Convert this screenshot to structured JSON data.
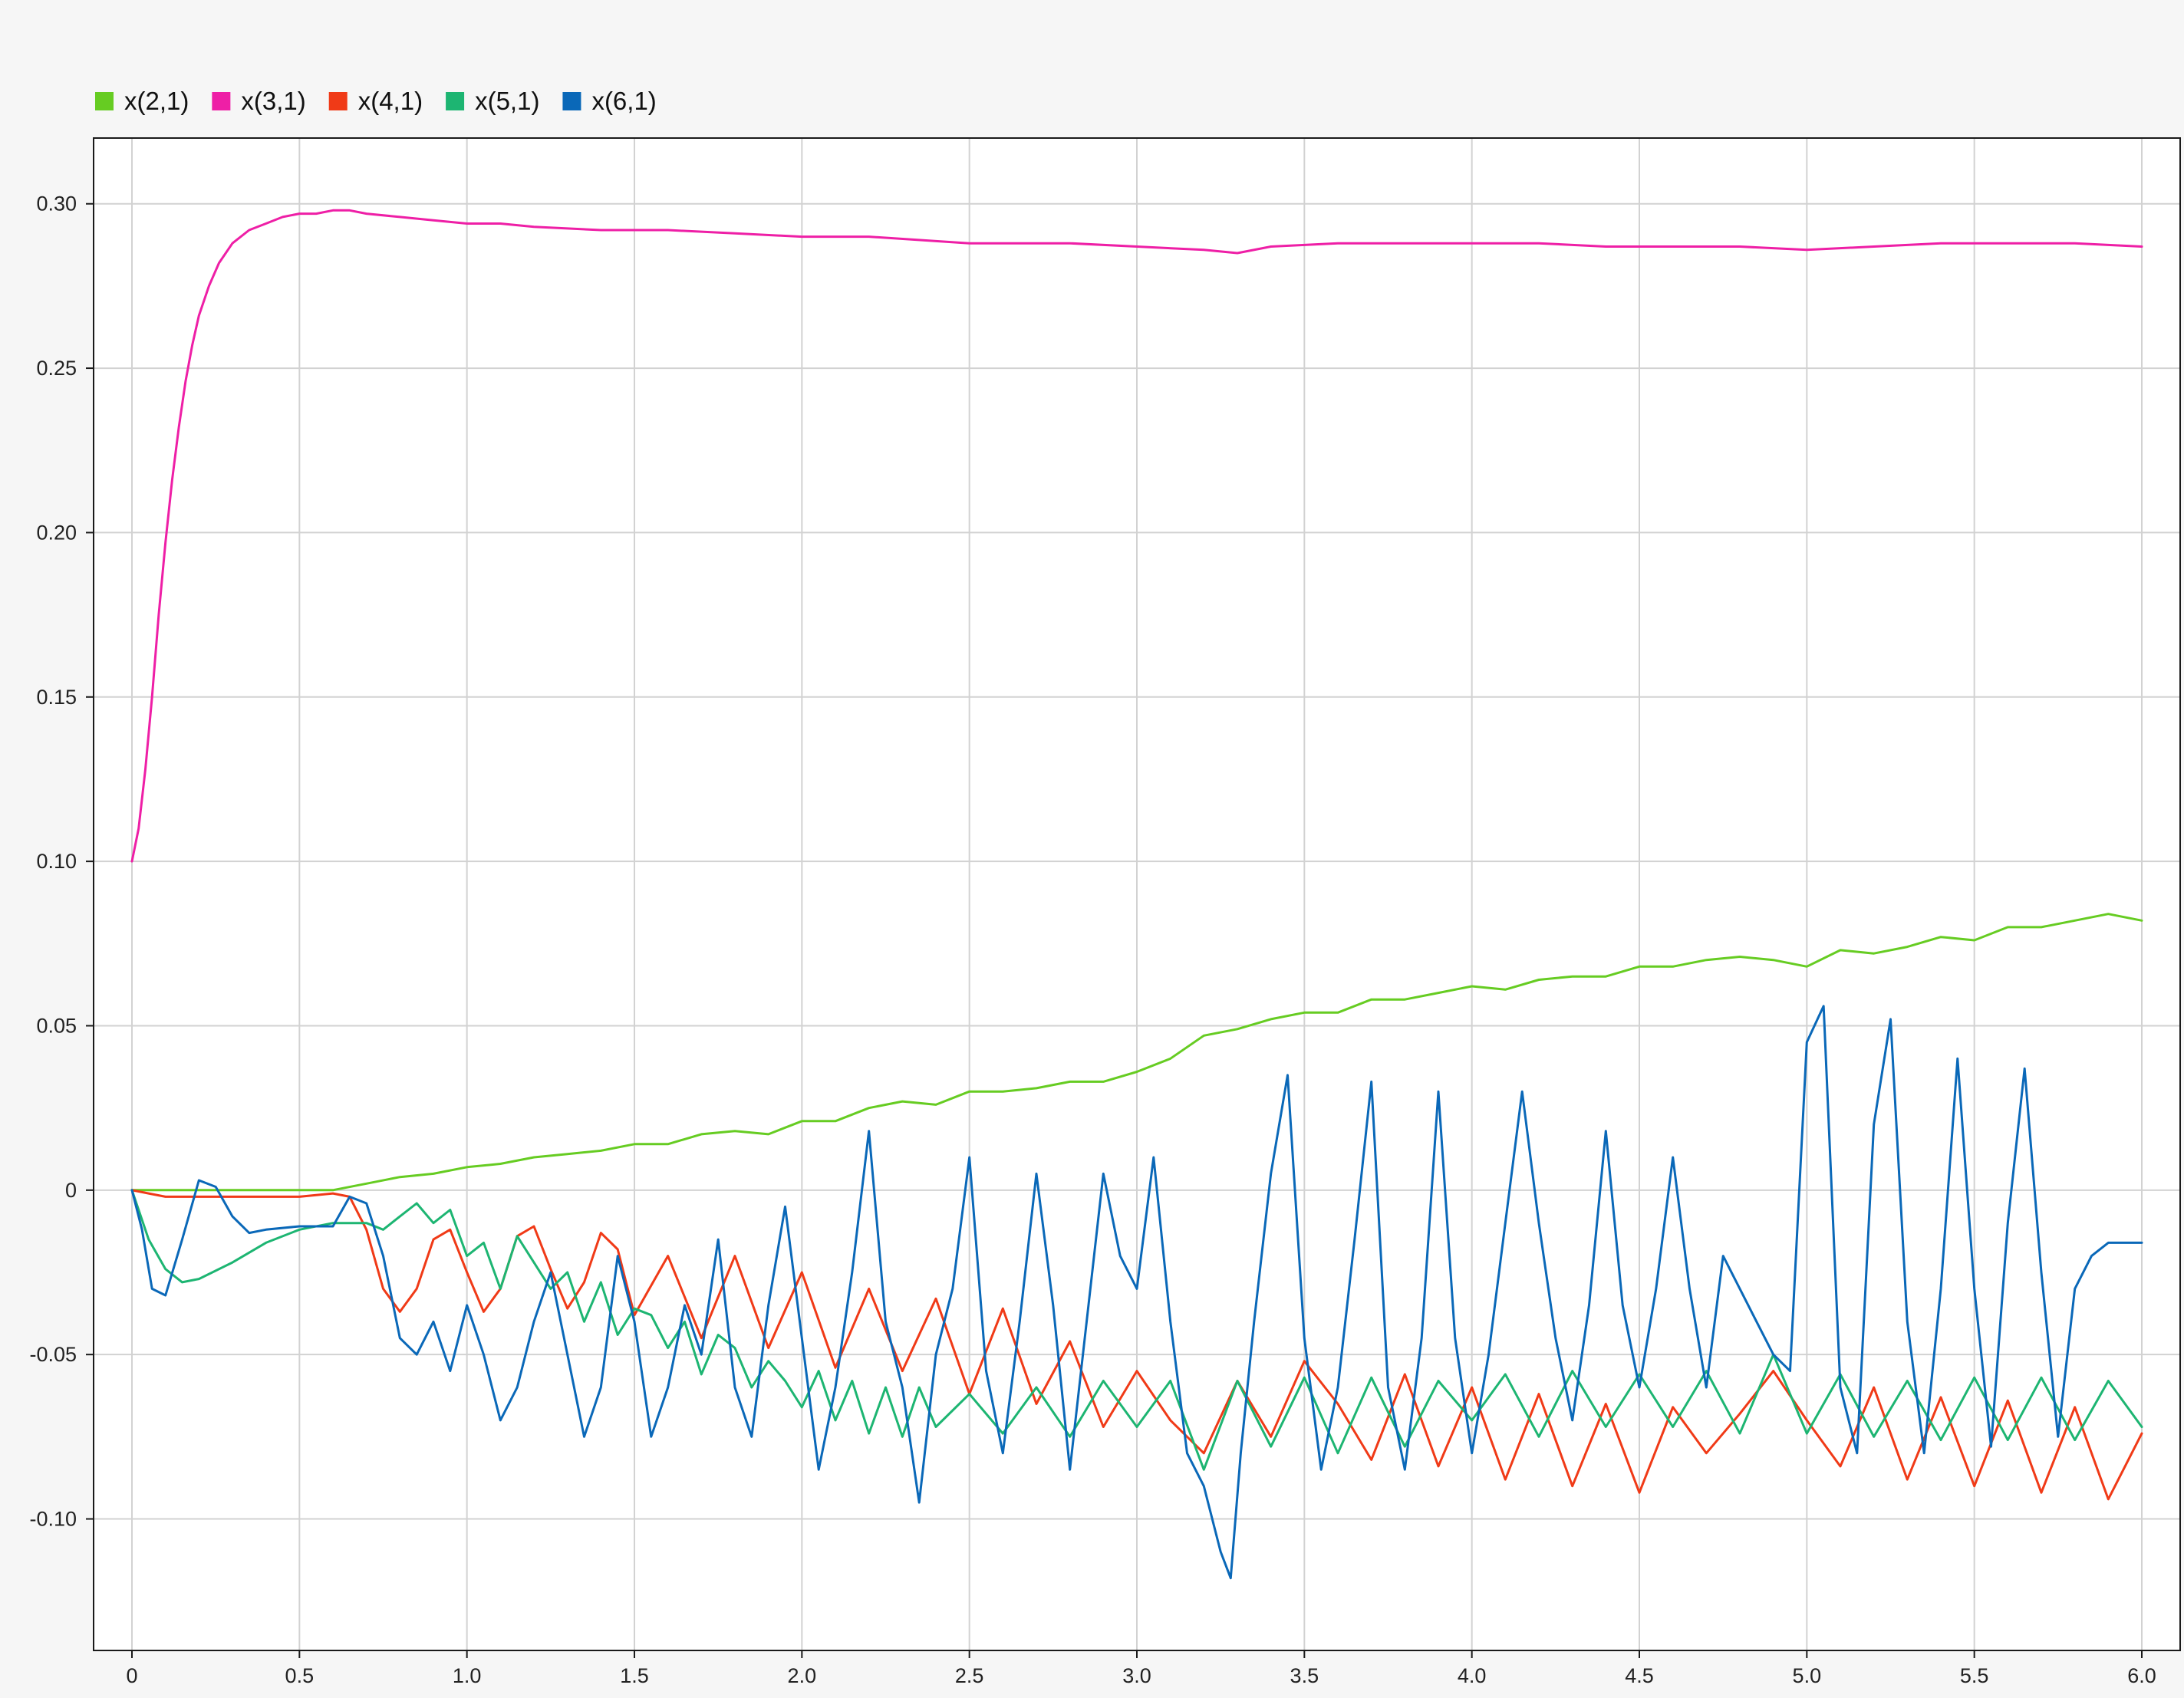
{
  "chart_data": {
    "type": "line",
    "xlim": [
      0,
      6
    ],
    "ylim": [
      -0.14,
      0.32
    ],
    "x_ticks": [
      0,
      0.5,
      1.0,
      1.5,
      2.0,
      2.5,
      3.0,
      3.5,
      4.0,
      4.5,
      5.0,
      5.5,
      6.0
    ],
    "x_tick_labels": [
      "0",
      "0.5",
      "1.0",
      "1.5",
      "2.0",
      "2.5",
      "3.0",
      "3.5",
      "4.0",
      "4.5",
      "5.0",
      "5.5",
      "6.0"
    ],
    "y_ticks": [
      -0.1,
      -0.05,
      0,
      0.05,
      0.1,
      0.15,
      0.2,
      0.25,
      0.3
    ],
    "y_tick_labels": [
      "-0.10",
      "-0.05",
      "0",
      "0.05",
      "0.10",
      "0.15",
      "0.20",
      "0.25",
      "0.30"
    ],
    "grid": true,
    "legend_position": "top-left",
    "series": [
      {
        "name": "x(2,1)",
        "color": "#66cc22",
        "x": [
          0,
          0.3,
          0.6,
          0.7,
          0.8,
          0.9,
          1.0,
          1.1,
          1.2,
          1.3,
          1.4,
          1.5,
          1.6,
          1.7,
          1.8,
          1.9,
          2.0,
          2.1,
          2.2,
          2.3,
          2.4,
          2.5,
          2.6,
          2.7,
          2.8,
          2.9,
          3.0,
          3.1,
          3.2,
          3.3,
          3.4,
          3.5,
          3.6,
          3.7,
          3.8,
          3.9,
          4.0,
          4.1,
          4.2,
          4.3,
          4.4,
          4.5,
          4.6,
          4.7,
          4.8,
          4.9,
          5.0,
          5.1,
          5.2,
          5.3,
          5.4,
          5.5,
          5.6,
          5.7,
          5.8,
          5.9,
          6.0
        ],
        "y": [
          0,
          0,
          0,
          0.002,
          0.004,
          0.005,
          0.007,
          0.008,
          0.01,
          0.011,
          0.012,
          0.014,
          0.014,
          0.017,
          0.018,
          0.017,
          0.021,
          0.021,
          0.025,
          0.027,
          0.026,
          0.03,
          0.03,
          0.031,
          0.033,
          0.033,
          0.036,
          0.04,
          0.047,
          0.049,
          0.052,
          0.054,
          0.054,
          0.058,
          0.058,
          0.06,
          0.062,
          0.061,
          0.064,
          0.065,
          0.065,
          0.068,
          0.068,
          0.07,
          0.071,
          0.07,
          0.068,
          0.073,
          0.072,
          0.074,
          0.077,
          0.076,
          0.08,
          0.08,
          0.082,
          0.084,
          0.082
        ]
      },
      {
        "name": "x(3,1)",
        "color": "#ee1fa6",
        "x": [
          0,
          0.02,
          0.04,
          0.06,
          0.08,
          0.1,
          0.12,
          0.14,
          0.16,
          0.18,
          0.2,
          0.23,
          0.26,
          0.3,
          0.35,
          0.4,
          0.45,
          0.5,
          0.55,
          0.6,
          0.65,
          0.7,
          0.8,
          0.9,
          1.0,
          1.1,
          1.2,
          1.4,
          1.6,
          1.8,
          2.0,
          2.2,
          2.5,
          2.8,
          3.0,
          3.2,
          3.3,
          3.4,
          3.6,
          3.8,
          4.0,
          4.2,
          4.4,
          4.6,
          4.8,
          5.0,
          5.2,
          5.4,
          5.6,
          5.8,
          6.0
        ],
        "y": [
          0.1,
          0.11,
          0.128,
          0.15,
          0.175,
          0.197,
          0.216,
          0.232,
          0.246,
          0.257,
          0.266,
          0.275,
          0.282,
          0.288,
          0.292,
          0.294,
          0.296,
          0.297,
          0.297,
          0.298,
          0.298,
          0.297,
          0.296,
          0.295,
          0.294,
          0.294,
          0.293,
          0.292,
          0.292,
          0.291,
          0.29,
          0.29,
          0.288,
          0.288,
          0.287,
          0.286,
          0.285,
          0.287,
          0.288,
          0.288,
          0.288,
          0.288,
          0.287,
          0.287,
          0.287,
          0.286,
          0.287,
          0.288,
          0.288,
          0.288,
          0.287
        ]
      },
      {
        "name": "x(4,1)",
        "color": "#f03a17",
        "x": [
          0,
          0.05,
          0.1,
          0.2,
          0.3,
          0.4,
          0.5,
          0.6,
          0.65,
          0.7,
          0.75,
          0.8,
          0.85,
          0.9,
          0.95,
          1.0,
          1.05,
          1.1,
          1.15,
          1.2,
          1.25,
          1.3,
          1.35,
          1.4,
          1.45,
          1.5,
          1.6,
          1.7,
          1.8,
          1.9,
          2.0,
          2.1,
          2.2,
          2.3,
          2.4,
          2.5,
          2.6,
          2.7,
          2.8,
          2.9,
          3.0,
          3.1,
          3.2,
          3.3,
          3.4,
          3.5,
          3.6,
          3.7,
          3.8,
          3.9,
          4.0,
          4.1,
          4.2,
          4.3,
          4.4,
          4.5,
          4.6,
          4.7,
          4.8,
          4.9,
          5.0,
          5.1,
          5.2,
          5.3,
          5.4,
          5.5,
          5.6,
          5.7,
          5.8,
          5.9,
          6.0
        ],
        "y": [
          0,
          -0.001,
          -0.002,
          -0.002,
          -0.002,
          -0.002,
          -0.002,
          -0.001,
          -0.002,
          -0.012,
          -0.03,
          -0.037,
          -0.03,
          -0.015,
          -0.012,
          -0.025,
          -0.037,
          -0.03,
          -0.014,
          -0.011,
          -0.024,
          -0.036,
          -0.028,
          -0.013,
          -0.018,
          -0.038,
          -0.02,
          -0.045,
          -0.02,
          -0.048,
          -0.025,
          -0.054,
          -0.03,
          -0.055,
          -0.033,
          -0.062,
          -0.036,
          -0.065,
          -0.046,
          -0.072,
          -0.055,
          -0.07,
          -0.08,
          -0.058,
          -0.075,
          -0.052,
          -0.065,
          -0.082,
          -0.056,
          -0.084,
          -0.06,
          -0.088,
          -0.062,
          -0.09,
          -0.065,
          -0.092,
          -0.066,
          -0.08,
          -0.068,
          -0.055,
          -0.07,
          -0.084,
          -0.06,
          -0.088,
          -0.063,
          -0.09,
          -0.064,
          -0.092,
          -0.066,
          -0.094,
          -0.074
        ]
      },
      {
        "name": "x(5,1)",
        "color": "#1db572",
        "x": [
          0,
          0.05,
          0.1,
          0.15,
          0.2,
          0.3,
          0.4,
          0.5,
          0.6,
          0.7,
          0.75,
          0.8,
          0.85,
          0.9,
          0.95,
          1.0,
          1.05,
          1.1,
          1.15,
          1.2,
          1.25,
          1.3,
          1.35,
          1.4,
          1.45,
          1.5,
          1.55,
          1.6,
          1.65,
          1.7,
          1.75,
          1.8,
          1.85,
          1.9,
          1.95,
          2.0,
          2.05,
          2.1,
          2.15,
          2.2,
          2.25,
          2.3,
          2.35,
          2.4,
          2.5,
          2.6,
          2.7,
          2.8,
          2.9,
          3.0,
          3.1,
          3.2,
          3.3,
          3.4,
          3.5,
          3.6,
          3.7,
          3.8,
          3.9,
          4.0,
          4.1,
          4.2,
          4.3,
          4.4,
          4.5,
          4.6,
          4.7,
          4.8,
          4.9,
          5.0,
          5.1,
          5.2,
          5.3,
          5.4,
          5.5,
          5.6,
          5.7,
          5.8,
          5.9,
          6.0
        ],
        "y": [
          0,
          -0.015,
          -0.024,
          -0.028,
          -0.027,
          -0.022,
          -0.016,
          -0.012,
          -0.01,
          -0.01,
          -0.012,
          -0.008,
          -0.004,
          -0.01,
          -0.006,
          -0.02,
          -0.016,
          -0.03,
          -0.014,
          -0.022,
          -0.03,
          -0.025,
          -0.04,
          -0.028,
          -0.044,
          -0.036,
          -0.038,
          -0.048,
          -0.04,
          -0.056,
          -0.044,
          -0.048,
          -0.06,
          -0.052,
          -0.058,
          -0.066,
          -0.055,
          -0.07,
          -0.058,
          -0.074,
          -0.06,
          -0.075,
          -0.06,
          -0.072,
          -0.062,
          -0.074,
          -0.06,
          -0.075,
          -0.058,
          -0.072,
          -0.058,
          -0.085,
          -0.058,
          -0.078,
          -0.057,
          -0.08,
          -0.057,
          -0.078,
          -0.058,
          -0.07,
          -0.056,
          -0.075,
          -0.055,
          -0.072,
          -0.056,
          -0.072,
          -0.055,
          -0.074,
          -0.05,
          -0.074,
          -0.056,
          -0.075,
          -0.058,
          -0.076,
          -0.057,
          -0.076,
          -0.057,
          -0.076,
          -0.058,
          -0.072
        ]
      },
      {
        "name": "x(6,1)",
        "color": "#0a68b8",
        "x": [
          0,
          0.03,
          0.06,
          0.1,
          0.15,
          0.2,
          0.25,
          0.3,
          0.35,
          0.4,
          0.5,
          0.6,
          0.65,
          0.7,
          0.75,
          0.8,
          0.85,
          0.9,
          0.95,
          1.0,
          1.05,
          1.1,
          1.15,
          1.2,
          1.25,
          1.3,
          1.35,
          1.4,
          1.45,
          1.5,
          1.55,
          1.6,
          1.65,
          1.7,
          1.75,
          1.8,
          1.85,
          1.9,
          1.95,
          2.0,
          2.05,
          2.1,
          2.15,
          2.2,
          2.25,
          2.3,
          2.35,
          2.4,
          2.45,
          2.5,
          2.55,
          2.6,
          2.65,
          2.7,
          2.75,
          2.8,
          2.85,
          2.9,
          2.95,
          3.0,
          3.05,
          3.1,
          3.15,
          3.2,
          3.25,
          3.28,
          3.31,
          3.35,
          3.4,
          3.45,
          3.5,
          3.55,
          3.6,
          3.65,
          3.7,
          3.75,
          3.8,
          3.85,
          3.9,
          3.95,
          4.0,
          4.05,
          4.1,
          4.15,
          4.2,
          4.25,
          4.3,
          4.35,
          4.4,
          4.45,
          4.5,
          4.55,
          4.6,
          4.65,
          4.7,
          4.75,
          4.8,
          4.85,
          4.9,
          4.95,
          5.0,
          5.05,
          5.1,
          5.15,
          5.2,
          5.25,
          5.3,
          5.35,
          5.4,
          5.45,
          5.5,
          5.55,
          5.6,
          5.65,
          5.7,
          5.75,
          5.8,
          5.85,
          5.9,
          5.95,
          6.0
        ],
        "y": [
          0,
          -0.012,
          -0.03,
          -0.032,
          -0.015,
          0.003,
          0.001,
          -0.008,
          -0.013,
          -0.012,
          -0.011,
          -0.011,
          -0.002,
          -0.004,
          -0.02,
          -0.045,
          -0.05,
          -0.04,
          -0.055,
          -0.035,
          -0.05,
          -0.07,
          -0.06,
          -0.04,
          -0.025,
          -0.05,
          -0.075,
          -0.06,
          -0.02,
          -0.04,
          -0.075,
          -0.06,
          -0.035,
          -0.05,
          -0.015,
          -0.06,
          -0.075,
          -0.035,
          -0.005,
          -0.045,
          -0.085,
          -0.06,
          -0.025,
          0.018,
          -0.04,
          -0.06,
          -0.095,
          -0.05,
          -0.03,
          0.01,
          -0.055,
          -0.08,
          -0.04,
          0.005,
          -0.035,
          -0.085,
          -0.04,
          0.005,
          -0.02,
          -0.03,
          0.01,
          -0.04,
          -0.08,
          -0.09,
          -0.11,
          -0.118,
          -0.08,
          -0.04,
          0.005,
          0.035,
          -0.045,
          -0.085,
          -0.06,
          -0.015,
          0.033,
          -0.06,
          -0.085,
          -0.045,
          0.03,
          -0.045,
          -0.08,
          -0.05,
          -0.01,
          0.03,
          -0.01,
          -0.045,
          -0.07,
          -0.035,
          0.018,
          -0.035,
          -0.06,
          -0.03,
          0.01,
          -0.03,
          -0.06,
          -0.02,
          -0.03,
          -0.04,
          -0.05,
          -0.055,
          0.045,
          0.056,
          -0.06,
          -0.08,
          0.02,
          0.052,
          -0.04,
          -0.08,
          -0.03,
          0.04,
          -0.03,
          -0.078,
          -0.01,
          0.037,
          -0.025,
          -0.075,
          -0.03,
          -0.02,
          -0.016,
          -0.016,
          -0.016
        ]
      }
    ]
  }
}
